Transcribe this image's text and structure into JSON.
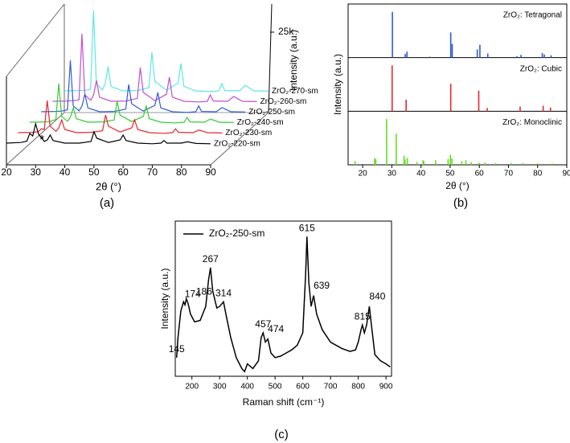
{
  "chart_data": [
    {
      "type": "waterfall",
      "panel_label": "(a)",
      "xlabel": "2θ (°)",
      "ylabel": "Intensity (a.u.)",
      "annotation": "*",
      "xlim": [
        20,
        90
      ],
      "xticks": [
        20,
        30,
        40,
        50,
        60,
        70,
        80,
        90
      ],
      "ylim": [
        0,
        30000
      ],
      "yticks": [
        {
          "value": 25000,
          "label": "25k"
        }
      ],
      "x": [
        20,
        25,
        27,
        28,
        29,
        30,
        31,
        33,
        34,
        35,
        36,
        40,
        45,
        49,
        50,
        51,
        55,
        59,
        60,
        61,
        65,
        70,
        73,
        74,
        75,
        80,
        82,
        85,
        90
      ],
      "series": [
        {
          "name": "ZrO₂-220-sm",
          "color": "#000000",
          "values": [
            3000,
            3200,
            3600,
            6000,
            5200,
            9000,
            5800,
            3500,
            4000,
            5500,
            3800,
            3000,
            3000,
            3500,
            6500,
            4500,
            3200,
            4000,
            5500,
            3800,
            3000,
            2800,
            3000,
            3800,
            3000,
            3000,
            3400,
            2900,
            2800
          ]
        },
        {
          "name": "ZrO₂-230-sm",
          "color": "#e8262b",
          "values": [
            3000,
            3100,
            3300,
            4200,
            4000,
            13000,
            5000,
            3400,
            4500,
            7000,
            4000,
            3000,
            3100,
            3600,
            8500,
            5000,
            3200,
            4500,
            7000,
            4000,
            3000,
            2800,
            3000,
            4200,
            3100,
            3000,
            3800,
            3000,
            2900
          ]
        },
        {
          "name": "ZrO₂-240-sm",
          "color": "#33cc33",
          "values": [
            3000,
            3100,
            3200,
            3600,
            3800,
            15000,
            4800,
            3300,
            4600,
            7500,
            4100,
            3000,
            3100,
            3700,
            9500,
            5200,
            3200,
            4800,
            8000,
            4100,
            3000,
            2800,
            3000,
            4500,
            3100,
            3000,
            4000,
            3000,
            2900
          ]
        },
        {
          "name": "ZrO₂-250-sm",
          "color": "#2e5cd6",
          "values": [
            3000,
            3100,
            3200,
            3400,
            3600,
            19000,
            4800,
            3300,
            4800,
            8500,
            4200,
            3000,
            3100,
            3800,
            11500,
            5500,
            3200,
            5000,
            9000,
            4200,
            3000,
            2800,
            3000,
            4800,
            3100,
            3000,
            4300,
            3000,
            2900
          ]
        },
        {
          "name": "ZrO₂-260-sm",
          "color": "#c050d0",
          "values": [
            3000,
            3100,
            3200,
            3300,
            3500,
            24000,
            5000,
            3300,
            5000,
            9500,
            4300,
            3000,
            3100,
            3900,
            13500,
            5800,
            3200,
            5200,
            10500,
            4300,
            3000,
            2800,
            3000,
            5000,
            3100,
            3000,
            4500,
            3000,
            2900
          ]
        },
        {
          "name": "ZrO₂-270-sm",
          "color": "#5ee6e6",
          "values": [
            3000,
            3100,
            3200,
            3300,
            3500,
            28000,
            5200,
            3300,
            5200,
            10500,
            4400,
            3000,
            3100,
            4000,
            15000,
            6000,
            3200,
            5400,
            11500,
            4400,
            3000,
            2800,
            3000,
            5200,
            3100,
            3000,
            4700,
            3000,
            2900
          ]
        }
      ]
    },
    {
      "type": "stick",
      "panel_label": "(b)",
      "xlabel": "2θ (°)",
      "ylabel": "Intensity (a.u.)",
      "xlim": [
        15,
        90
      ],
      "xticks": [
        20,
        30,
        40,
        50,
        60,
        70,
        80,
        90
      ],
      "ylim": [
        0,
        110
      ],
      "series": [
        {
          "name": "ZrO₂: Tetragonal",
          "color": "#2e5cd6",
          "x": [
            30.2,
            34.6,
            35.2,
            43,
            50.2,
            50.7,
            59.3,
            60.2,
            62.9,
            72.9,
            74.3,
            81.6,
            82.3,
            84.6
          ],
          "values": [
            100,
            8,
            13,
            2,
            55,
            30,
            18,
            28,
            9,
            3,
            6,
            10,
            7,
            5
          ]
        },
        {
          "name": "ZrO₂: Cubic",
          "color": "#e8262b",
          "x": [
            30.1,
            34.9,
            50.2,
            59.8,
            62.7,
            74,
            81.9,
            84.4
          ],
          "values": [
            100,
            25,
            60,
            45,
            7,
            10,
            12,
            8
          ]
        },
        {
          "name": "ZrO₂: Monoclinic",
          "color": "#66dd22",
          "x": [
            17.4,
            24.1,
            24.5,
            28.2,
            31.5,
            34.2,
            34.5,
            35.3,
            38.6,
            40.7,
            41,
            45,
            49.3,
            50.1,
            50.6,
            54,
            55.4,
            57.2,
            59.9,
            62,
            65.6,
            71,
            75,
            80,
            85
          ],
          "values": [
            8,
            15,
            12,
            100,
            68,
            20,
            12,
            15,
            6,
            10,
            8,
            10,
            13,
            22,
            14,
            8,
            10,
            6,
            5,
            5,
            4,
            4,
            4,
            3,
            3
          ]
        }
      ]
    },
    {
      "type": "line",
      "panel_label": "(c)",
      "xlabel": "Raman shift (cm⁻¹)",
      "ylabel": "Intensity (a.u.)",
      "xlim": [
        140,
        920
      ],
      "xticks": [
        200,
        300,
        400,
        500,
        600,
        700,
        800,
        900
      ],
      "ylim": [
        0,
        100
      ],
      "x": [
        145,
        150,
        160,
        170,
        175,
        180,
        186,
        195,
        210,
        230,
        250,
        260,
        267,
        275,
        290,
        300,
        314,
        325,
        340,
        360,
        380,
        390,
        400,
        420,
        440,
        450,
        457,
        465,
        474,
        485,
        500,
        520,
        540,
        560,
        580,
        600,
        610,
        615,
        622,
        630,
        639,
        650,
        670,
        700,
        740,
        770,
        790,
        800,
        810,
        815,
        822,
        830,
        840,
        848,
        860,
        880,
        900,
        915
      ],
      "series": [
        {
          "name": "ZrO₂-250-sm",
          "color": "#000000",
          "values": [
            12,
            25,
            42,
            48,
            46,
            50,
            47,
            40,
            35,
            36,
            45,
            62,
            70,
            55,
            44,
            45,
            48,
            38,
            25,
            12,
            5,
            3,
            8,
            5,
            10,
            25,
            28,
            22,
            24,
            15,
            12,
            13,
            15,
            17,
            20,
            28,
            65,
            90,
            60,
            45,
            52,
            40,
            30,
            22,
            18,
            16,
            17,
            22,
            30,
            33,
            28,
            33,
            45,
            32,
            14,
            10,
            8,
            6
          ]
        }
      ],
      "peak_labels": [
        145,
        174,
        186,
        267,
        314,
        457,
        474,
        615,
        639,
        815,
        840
      ]
    }
  ]
}
